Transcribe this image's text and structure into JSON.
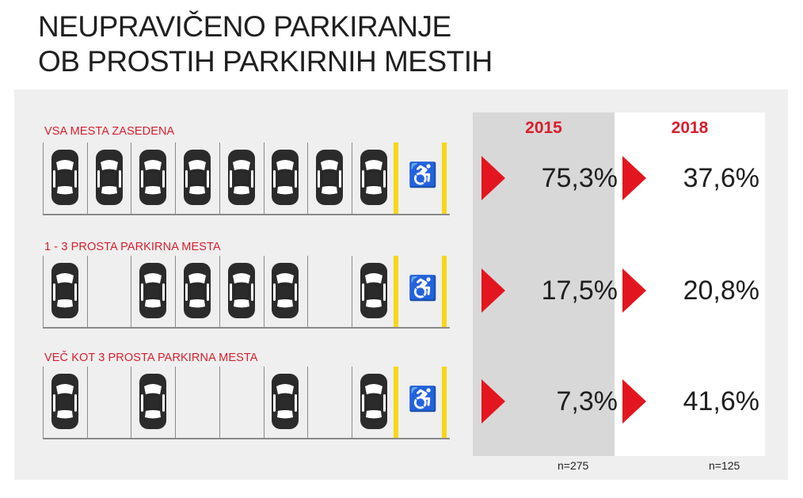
{
  "title": {
    "line1": "NEUPRAVIČENO PARKIRANJE",
    "line2": "OB PROSTIH PARKIRNIH MESTIH"
  },
  "chart_data": {
    "type": "table",
    "columns": [
      "2015",
      "2018"
    ],
    "rows": [
      {
        "label": "VSA MESTA ZASEDENA",
        "occupied": [
          true,
          true,
          true,
          true,
          true,
          true,
          true,
          true
        ],
        "values": [
          "75,3%",
          "37,6%"
        ],
        "numeric": [
          75.3,
          37.6
        ]
      },
      {
        "label": "1 - 3 PROSTA PARKIRNA MESTA",
        "occupied": [
          true,
          false,
          true,
          true,
          true,
          true,
          false,
          true
        ],
        "values": [
          "17,5%",
          "20,8%"
        ],
        "numeric": [
          17.5,
          20.8
        ]
      },
      {
        "label": "VEČ KOT 3 PROSTA PARKIRNA MESTA",
        "occupied": [
          true,
          false,
          true,
          false,
          false,
          true,
          false,
          true
        ],
        "values": [
          "7,3%",
          "41,6%"
        ],
        "numeric": [
          7.3,
          41.6
        ]
      }
    ],
    "samples": [
      "n=275",
      "n=125"
    ],
    "handicap_icon": "wheelchair-icon",
    "colors": {
      "accent": "#d81e2c",
      "arrow": "#e3161f",
      "handicap_line": "#f7d716",
      "col_2015_bg": "#d8d8d8",
      "panel_bg": "#efefef"
    }
  }
}
